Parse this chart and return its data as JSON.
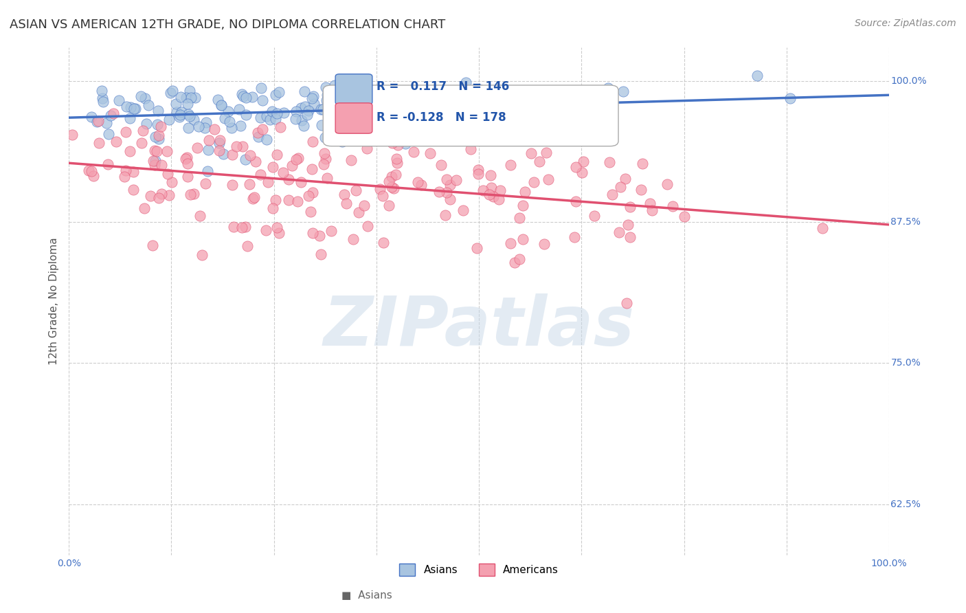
{
  "title": "ASIAN VS AMERICAN 12TH GRADE, NO DIPLOMA CORRELATION CHART",
  "source": "Source: ZipAtlas.com",
  "ylabel": "12th Grade, No Diploma",
  "xlabel": "",
  "xlim": [
    0,
    1
  ],
  "ylim": [
    0.58,
    1.03
  ],
  "yticks": [
    0.625,
    0.75,
    0.875,
    1.0
  ],
  "ytick_labels": [
    "62.5%",
    "75.0%",
    "87.5%",
    "100.0%"
  ],
  "xticks": [
    0,
    0.125,
    0.25,
    0.375,
    0.5,
    0.625,
    0.75,
    0.875,
    1.0
  ],
  "xtick_labels": [
    "0.0%",
    "",
    "",
    "",
    "",
    "",
    "",
    "",
    "100.0%"
  ],
  "asian_R": 0.117,
  "asian_N": 146,
  "american_R": -0.128,
  "american_N": 178,
  "asian_color": "#a8c4e0",
  "american_color": "#f4a0b0",
  "asian_line_color": "#4472c4",
  "american_line_color": "#e05070",
  "background_color": "#ffffff",
  "grid_color": "#cccccc",
  "title_color": "#333333",
  "axis_label_color": "#4472c4",
  "legend_R_color": "#2255aa",
  "watermark_color": "#c8d8e8",
  "watermark_text": "ZIPatlas",
  "title_fontsize": 13,
  "source_fontsize": 10,
  "axis_label_fontsize": 11,
  "tick_fontsize": 10,
  "legend_fontsize": 12
}
